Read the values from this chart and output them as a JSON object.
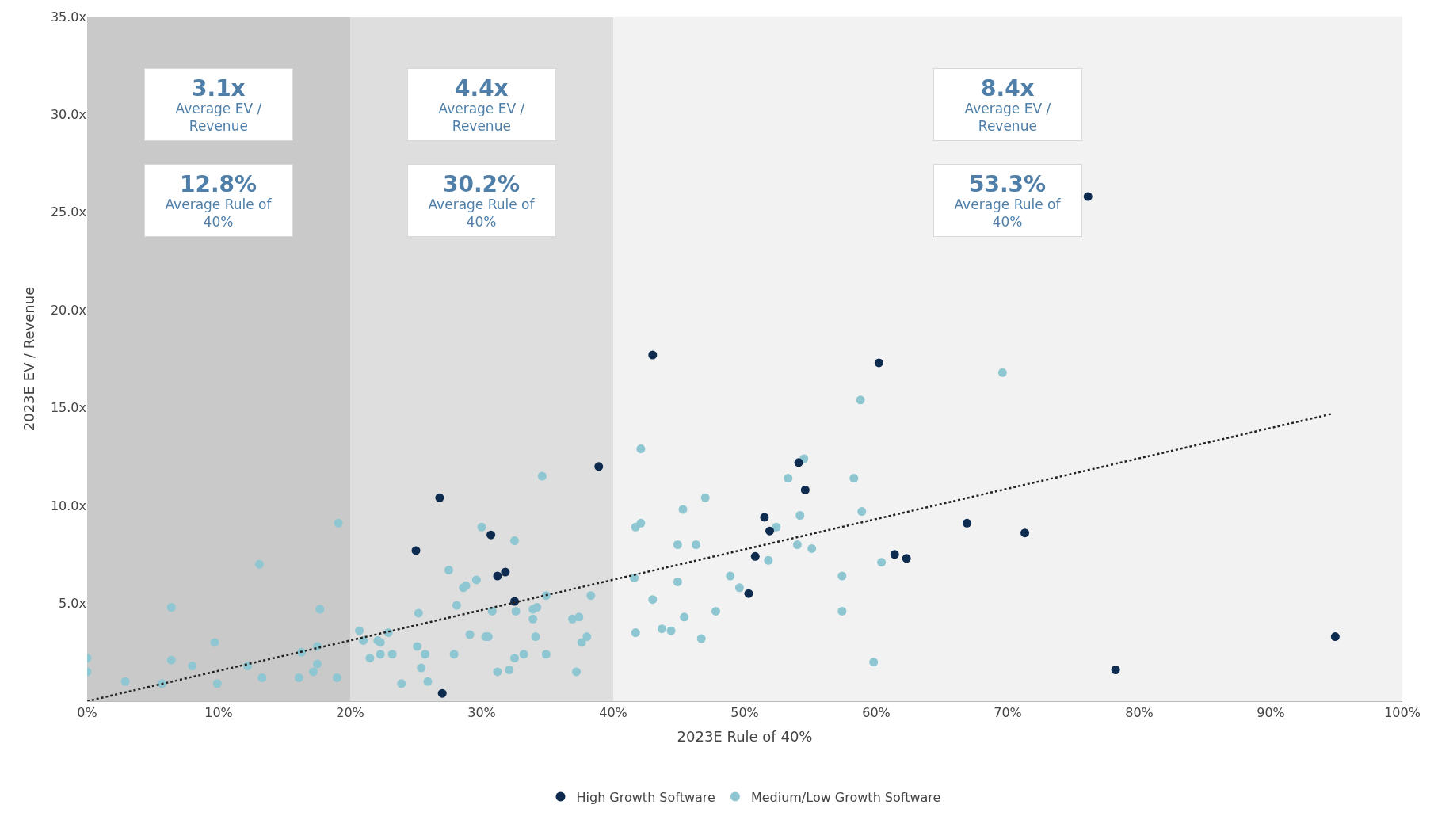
{
  "chart_data": {
    "type": "scatter",
    "xlabel": "2023E Rule of 40%",
    "ylabel": "2023E EV / Revenue",
    "xlim": [
      0,
      100
    ],
    "ylim": [
      0,
      35
    ],
    "xticks": [
      {
        "value": 0,
        "label": "0%"
      },
      {
        "value": 10,
        "label": "10%"
      },
      {
        "value": 20,
        "label": "20%"
      },
      {
        "value": 30,
        "label": "30%"
      },
      {
        "value": 40,
        "label": "40%"
      },
      {
        "value": 50,
        "label": "50%"
      },
      {
        "value": 60,
        "label": "60%"
      },
      {
        "value": 70,
        "label": "70%"
      },
      {
        "value": 80,
        "label": "80%"
      },
      {
        "value": 90,
        "label": "90%"
      },
      {
        "value": 100,
        "label": "100%"
      }
    ],
    "yticks": [
      {
        "value": 5,
        "label": "5.0x"
      },
      {
        "value": 10,
        "label": "10.0x"
      },
      {
        "value": 15,
        "label": "15.0x"
      },
      {
        "value": 20,
        "label": "20.0x"
      },
      {
        "value": 25,
        "label": "25.0x"
      },
      {
        "value": 30,
        "label": "30.0x"
      },
      {
        "value": 35,
        "label": "35.0x"
      }
    ],
    "grid": false,
    "legend": "bottom",
    "marker": "circle",
    "bands": [
      {
        "axis": "x",
        "from": 0,
        "to": 20,
        "color": "#c9c9c9"
      },
      {
        "axis": "x",
        "from": 20,
        "to": 40,
        "color": "#dedede"
      },
      {
        "axis": "x",
        "from": 40,
        "to": 100,
        "color": "#f2f2f2"
      }
    ],
    "annotations": [
      "3.1x\nAverage EV /\nRevenue",
      "12.8%\nAverage Rule of\n40%",
      "4.4x\nAverage EV /\nRevenue",
      "30.2%\nAverage Rule of\n40%",
      "8.4x\nAverage EV /\nRevenue",
      "53.3%\nAverage Rule of\n40%"
    ],
    "series": [
      {
        "name": "Medium/Low Growth Software",
        "color": "#8ec6d1",
        "x": [
          0,
          0,
          2.9,
          5.7,
          6.4,
          6.4,
          8.0,
          9.7,
          9.9,
          12.2,
          13.1,
          13.3,
          16.1,
          16.3,
          17.2,
          17.5,
          17.5,
          17.7,
          19.0,
          19.1,
          20.7,
          21.0,
          21.5,
          22.1,
          22.3,
          22.3,
          22.9,
          23.2,
          23.9,
          25.2,
          25.1,
          25.4,
          25.7,
          25.9,
          27.5,
          27.9,
          28.1,
          28.6,
          28.8,
          29.1,
          29.6,
          30.0,
          30.3,
          30.5,
          30.8,
          31.2,
          32.1,
          32.5,
          32.5,
          32.6,
          33.2,
          33.9,
          33.9,
          34.1,
          34.2,
          34.6,
          34.9,
          34.9,
          36.9,
          37.2,
          37.4,
          37.6,
          38.0,
          38.3,
          41.6,
          41.7,
          42.1,
          42.1,
          41.7,
          43.0,
          43.7,
          44.4,
          44.9,
          44.9,
          45.3,
          45.4,
          46.3,
          46.7,
          47.0,
          47.8,
          48.9,
          49.6,
          51.8,
          52.4,
          53.3,
          54.0,
          54.2,
          54.5,
          55.1,
          57.4,
          57.4,
          58.3,
          58.8,
          58.9,
          59.8,
          60.4,
          69.6
        ],
        "values": [
          2.2,
          1.5,
          1.0,
          0.9,
          4.8,
          2.1,
          1.8,
          3.0,
          0.9,
          1.8,
          7.0,
          1.2,
          1.2,
          2.5,
          1.5,
          1.9,
          2.8,
          4.7,
          1.2,
          9.1,
          3.6,
          3.1,
          2.2,
          3.1,
          3.0,
          2.4,
          3.5,
          2.4,
          0.9,
          4.5,
          2.8,
          1.7,
          2.4,
          1.0,
          6.7,
          2.4,
          4.9,
          5.8,
          5.9,
          3.4,
          6.2,
          8.9,
          3.3,
          3.3,
          4.6,
          1.5,
          1.6,
          2.2,
          8.2,
          4.6,
          2.4,
          4.7,
          4.2,
          3.3,
          4.8,
          11.5,
          5.4,
          2.4,
          4.2,
          1.5,
          4.3,
          3.0,
          3.3,
          5.4,
          6.3,
          8.9,
          9.1,
          12.9,
          3.5,
          5.2,
          3.7,
          3.6,
          8.0,
          6.1,
          9.8,
          4.3,
          8.0,
          3.2,
          10.4,
          4.6,
          6.4,
          5.8,
          7.2,
          8.9,
          11.4,
          8.0,
          9.5,
          12.4,
          7.8,
          4.6,
          6.4,
          11.4,
          15.4,
          9.7,
          2.0,
          7.1,
          16.8
        ]
      },
      {
        "name": "High Growth Software",
        "color": "#0d2a4f",
        "x": [
          43.0,
          60.2,
          76.1,
          38.9,
          54.1,
          54.6,
          26.8,
          30.7,
          25.0,
          51.5,
          51.9,
          66.9,
          71.3,
          31.2,
          31.8,
          32.5,
          50.8,
          61.4,
          62.3,
          50.3,
          94.9,
          78.2,
          27.0
        ],
        "values": [
          17.7,
          17.3,
          25.8,
          12.0,
          12.2,
          10.8,
          10.4,
          8.5,
          7.7,
          9.4,
          8.7,
          9.1,
          8.6,
          6.4,
          6.6,
          5.1,
          7.4,
          7.5,
          7.3,
          5.5,
          3.3,
          1.6,
          0.4
        ]
      },
      {
        "type": "line",
        "color": "#222222",
        "line_style": "dotted",
        "marker": "none",
        "x": [
          0,
          94.7
        ],
        "values": [
          0,
          14.7
        ]
      }
    ]
  }
}
